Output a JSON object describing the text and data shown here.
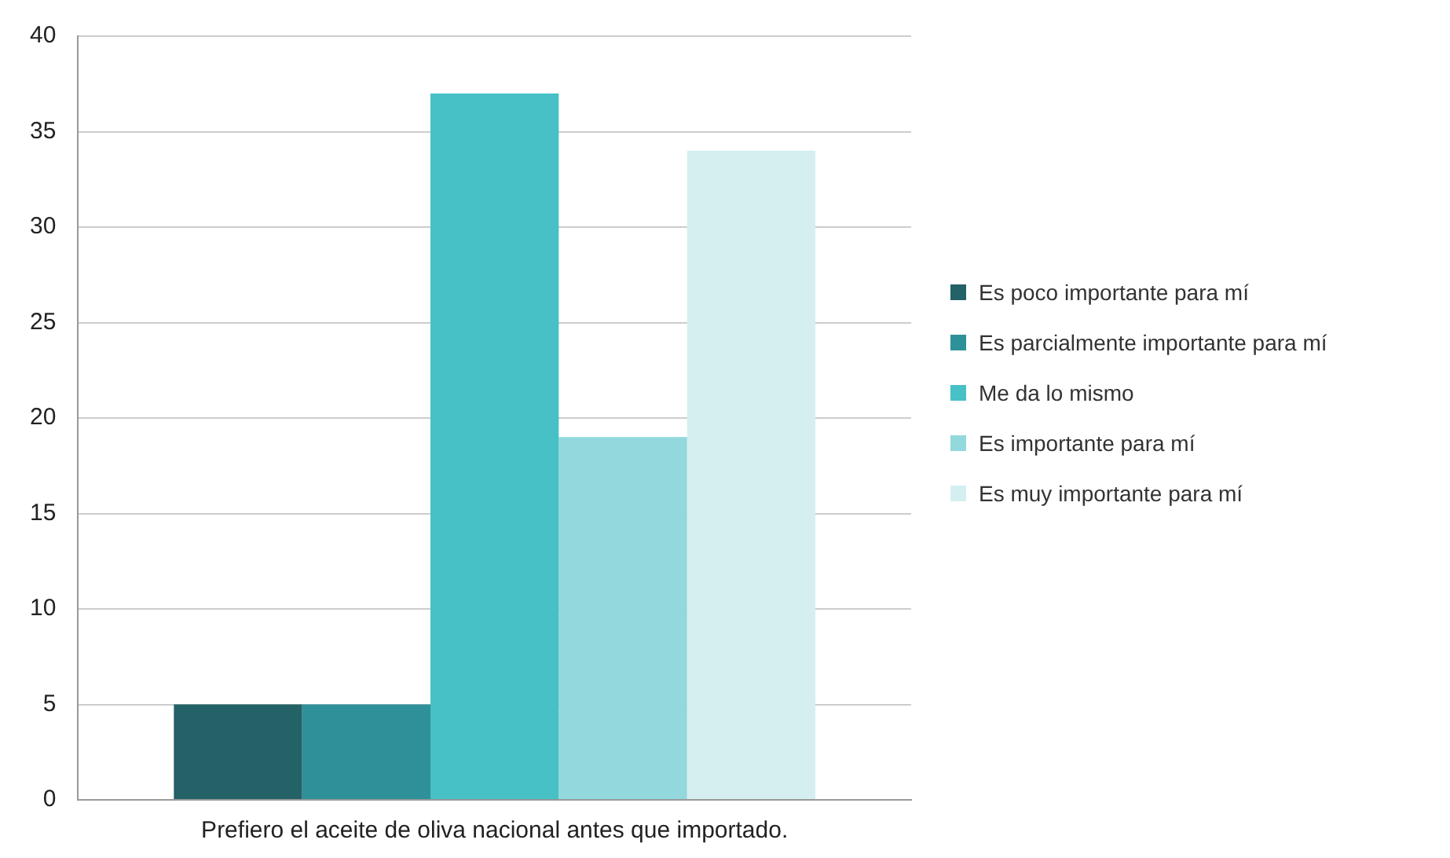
{
  "chart_data": {
    "type": "bar",
    "categories": [
      "Prefiero el aceite de oliva nacional antes que importado."
    ],
    "series": [
      {
        "name": "Es poco importante para mí",
        "color": "#236266",
        "values": [
          5
        ]
      },
      {
        "name": "Es parcialmente importante para mí",
        "color": "#2e9199",
        "values": [
          5
        ]
      },
      {
        "name": "Me da lo mismo",
        "color": "#47c0c6",
        "values": [
          37
        ]
      },
      {
        "name": "Es importante para mí",
        "color": "#92d8dc",
        "values": [
          19
        ]
      },
      {
        "name": "Es muy importante para mí",
        "color": "#d5eff1",
        "values": [
          34
        ]
      }
    ],
    "ylim": [
      0,
      40
    ],
    "yticks": [
      0,
      5,
      10,
      15,
      20,
      25,
      30,
      35,
      40
    ],
    "grid": "y",
    "legend": "right"
  }
}
